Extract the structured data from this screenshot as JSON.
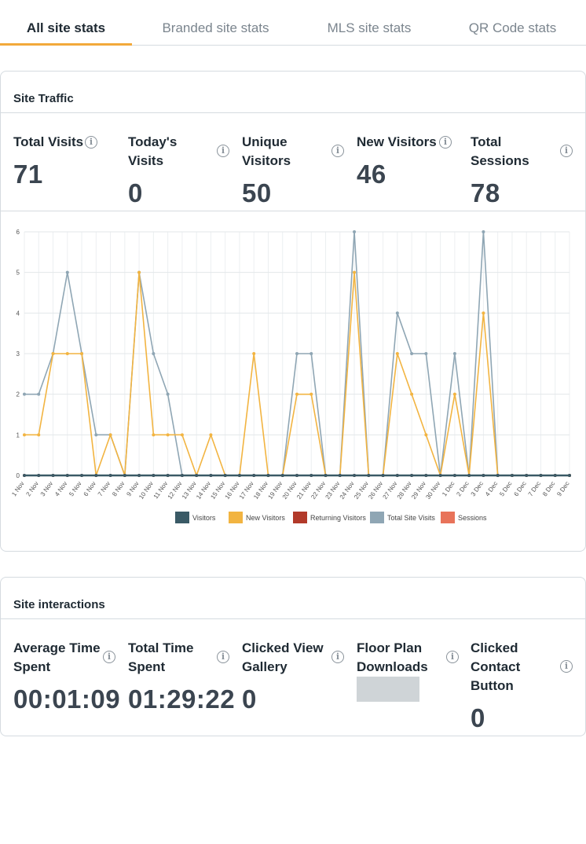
{
  "tabs": [
    {
      "label": "All site stats",
      "active": true
    },
    {
      "label": "Branded site stats",
      "active": false
    },
    {
      "label": "MLS site stats",
      "active": false
    },
    {
      "label": "QR Code stats",
      "active": false
    }
  ],
  "traffic": {
    "title": "Site Traffic",
    "stats": [
      {
        "label": "Total Visits",
        "value": "71"
      },
      {
        "label": "Today's Visits",
        "value": "0"
      },
      {
        "label": "Unique Visitors",
        "value": "50"
      },
      {
        "label": "New Visitors",
        "value": "46"
      },
      {
        "label": "Total Sessions",
        "value": "78"
      }
    ]
  },
  "interactions": {
    "title": "Site interactions",
    "stats": [
      {
        "label": "Average Time Spent",
        "value": "00:01:09"
      },
      {
        "label": "Total Time Spent",
        "value": "01:29:22"
      },
      {
        "label": "Clicked View Gallery",
        "value": "0"
      },
      {
        "label": "Floor Plan Downloads",
        "value": ""
      },
      {
        "label": "Clicked Contact Button",
        "value": "0"
      }
    ]
  },
  "icons": {
    "info": "info-icon"
  },
  "colors": {
    "accent": "#f2a93b"
  },
  "chart_data": {
    "type": "line",
    "title": "",
    "categories": [
      "1 Nov",
      "2 Nov",
      "3 Nov",
      "4 Nov",
      "5 Nov",
      "6 Nov",
      "7 Nov",
      "8 Nov",
      "9 Nov",
      "10 Nov",
      "11 Nov",
      "12 Nov",
      "13 Nov",
      "14 Nov",
      "15 Nov",
      "16 Nov",
      "17 Nov",
      "18 Nov",
      "19 Nov",
      "20 Nov",
      "21 Nov",
      "22 Nov",
      "23 Nov",
      "24 Nov",
      "25 Nov",
      "26 Nov",
      "27 Nov",
      "28 Nov",
      "29 Nov",
      "30 Nov",
      "1 Dec",
      "2 Dec",
      "3 Dec",
      "4 Dec",
      "5 Dec",
      "6 Dec",
      "7 Dec",
      "8 Dec",
      "9 Dec"
    ],
    "ylim": [
      0,
      6
    ],
    "yticks": [
      0,
      1,
      2,
      3,
      4,
      5,
      6
    ],
    "series": [
      {
        "name": "Visitors",
        "color": "#3a5a66",
        "values": [
          0,
          0,
          0,
          0,
          0,
          0,
          0,
          0,
          0,
          0,
          0,
          0,
          0,
          0,
          0,
          0,
          0,
          0,
          0,
          0,
          0,
          0,
          0,
          0,
          0,
          0,
          0,
          0,
          0,
          0,
          0,
          0,
          0,
          0,
          0,
          0,
          0,
          0,
          0
        ]
      },
      {
        "name": "New Visitors",
        "color": "#f2b441",
        "values": [
          1,
          1,
          3,
          3,
          3,
          0,
          1,
          0,
          5,
          1,
          1,
          1,
          0,
          1,
          0,
          0,
          3,
          0,
          0,
          2,
          2,
          0,
          0,
          5,
          0,
          0,
          3,
          2,
          1,
          0,
          2,
          0,
          4,
          0,
          0,
          0,
          0,
          0,
          0
        ]
      },
      {
        "name": "Returning Visitors",
        "color": "#b23a2a",
        "values": [
          0,
          0,
          0,
          0,
          0,
          0,
          0,
          0,
          0,
          0,
          0,
          0,
          0,
          0,
          0,
          0,
          0,
          0,
          0,
          0,
          0,
          0,
          0,
          0,
          0,
          0,
          0,
          0,
          0,
          0,
          0,
          0,
          0,
          0,
          0,
          0,
          0,
          0,
          0
        ]
      },
      {
        "name": "Total Site Visits",
        "color": "#8fa6b4",
        "values": [
          2,
          2,
          3,
          5,
          3,
          1,
          1,
          0,
          5,
          3,
          2,
          0,
          0,
          0,
          0,
          0,
          0,
          0,
          0,
          3,
          3,
          0,
          0,
          6,
          0,
          0,
          4,
          3,
          3,
          0,
          3,
          0,
          6,
          0,
          0,
          0,
          0,
          0,
          0
        ]
      },
      {
        "name": "Sessions",
        "color": "#e8735a",
        "values": null
      }
    ]
  }
}
